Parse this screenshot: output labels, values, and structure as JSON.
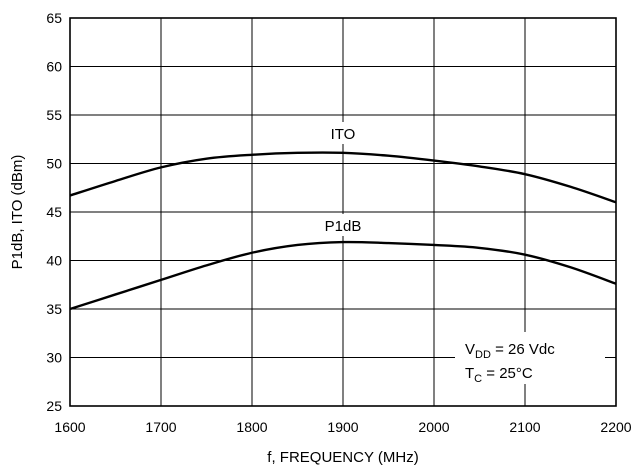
{
  "chart_data": {
    "type": "line",
    "xlabel": "f, FREQUENCY (MHz)",
    "ylabel": "P1dB, ITO (dBm)",
    "xlim": [
      1600,
      2200
    ],
    "ylim": [
      25,
      65
    ],
    "xticks": [
      1600,
      1700,
      1800,
      1900,
      2000,
      2100,
      2200
    ],
    "yticks": [
      25,
      30,
      35,
      40,
      45,
      50,
      55,
      60,
      65
    ],
    "grid": true,
    "series": [
      {
        "name": "ITO",
        "x": [
          1600,
          1650,
          1700,
          1750,
          1800,
          1850,
          1900,
          1950,
          2000,
          2050,
          2100,
          2150,
          2200
        ],
        "y": [
          46.7,
          48.2,
          49.6,
          50.5,
          50.9,
          51.1,
          51.1,
          50.8,
          50.3,
          49.7,
          48.9,
          47.6,
          46.0
        ]
      },
      {
        "name": "P1dB",
        "x": [
          1600,
          1650,
          1700,
          1750,
          1800,
          1850,
          1900,
          1950,
          2000,
          2050,
          2100,
          2150,
          2200
        ],
        "y": [
          35.0,
          36.5,
          38.0,
          39.5,
          40.8,
          41.6,
          41.9,
          41.8,
          41.6,
          41.3,
          40.6,
          39.3,
          37.6
        ]
      }
    ],
    "annotations": {
      "vdd_sym": "V",
      "vdd_sub": "DD",
      "vdd_val": " = 26 Vdc",
      "tc_sym": "T",
      "tc_sub": "C",
      "tc_val": " = 25°C"
    }
  }
}
